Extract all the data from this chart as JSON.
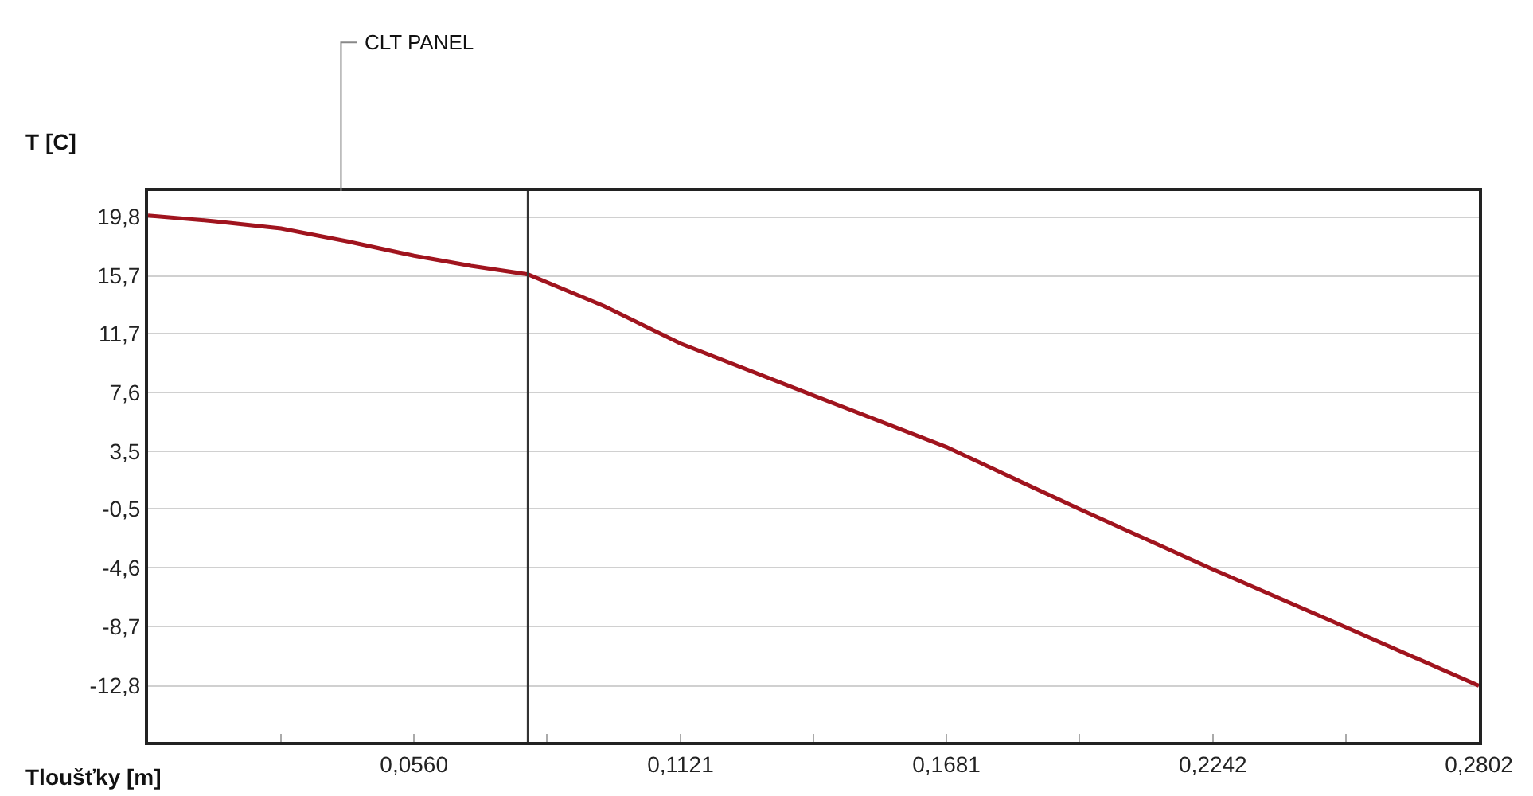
{
  "chart_data": {
    "type": "line",
    "xlabel": "Tloušťky [m]",
    "ylabel": "T [C]",
    "x": [
      0,
      0.014,
      0.028,
      0.042,
      0.056,
      0.068,
      0.08,
      0.096,
      0.1121,
      0.14,
      0.1681,
      0.196,
      0.2242,
      0.252,
      0.2802
    ],
    "series": [
      {
        "color": "#a0141e",
        "values": [
          19.9,
          19.5,
          19.0,
          18.1,
          17.1,
          16.4,
          15.8,
          13.6,
          11.0,
          7.4,
          3.8,
          -0.5,
          -4.7,
          -8.7,
          -12.8
        ]
      }
    ],
    "xlim": [
      0,
      0.2802
    ],
    "xticks": [
      {
        "value": 0.028,
        "label": null
      },
      {
        "value": 0.056,
        "label": "0,0560"
      },
      {
        "value": 0.084,
        "label": null
      },
      {
        "value": 0.1121,
        "label": "0,1121"
      },
      {
        "value": 0.1401,
        "label": null
      },
      {
        "value": 0.1681,
        "label": "0,1681"
      },
      {
        "value": 0.1961,
        "label": null
      },
      {
        "value": 0.2242,
        "label": "0,2242"
      },
      {
        "value": 0.2522,
        "label": null
      },
      {
        "value": 0.2802,
        "label": "0,2802"
      }
    ],
    "ylim": [
      -16.7,
      21.6
    ],
    "yticks": [
      {
        "value": 19.8,
        "label": "19,8"
      },
      {
        "value": 15.7,
        "label": "15,7"
      },
      {
        "value": 11.7,
        "label": "11,7"
      },
      {
        "value": 7.6,
        "label": "7,6"
      },
      {
        "value": 3.5,
        "label": "3,5"
      },
      {
        "value": -0.5,
        "label": "-0,5"
      },
      {
        "value": -4.6,
        "label": "-4,6"
      },
      {
        "value": -8.7,
        "label": "-8,7"
      },
      {
        "value": -12.8,
        "label": "-12,8"
      }
    ],
    "grid": "y",
    "marker": "none",
    "line_style": "solid",
    "ref_lines": [
      {
        "axis": "x",
        "value": 0.08,
        "color": "#333333"
      }
    ],
    "annotations": [
      "CLT PANEL"
    ]
  }
}
